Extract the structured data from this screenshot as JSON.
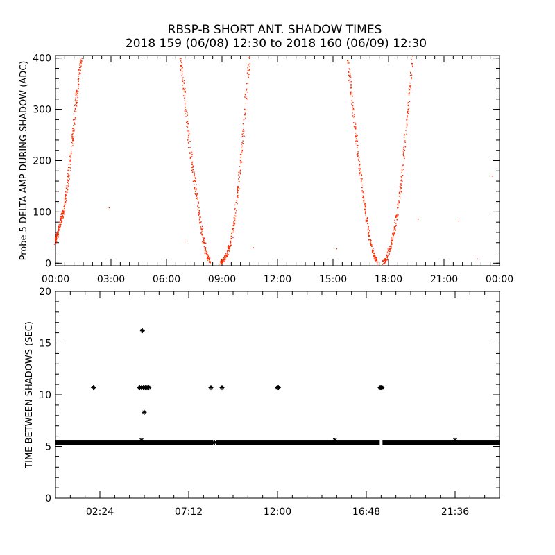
{
  "title": {
    "line1": "RBSP-B SHORT ANT. SHADOW TIMES",
    "line2": "2018 159 (06/08) 12:30 to 2018 160 (06/09) 12:30"
  },
  "colors": {
    "top_points": "#ff2a00",
    "bottom_points": "#000000",
    "axes": "#000000"
  },
  "chart_data": [
    {
      "type": "scatter",
      "name": "top-panel",
      "ylabel": "Probe 5 DELTA AMP DURING SHADOW (ADC)",
      "x_unit": "hours",
      "xlim": [
        0,
        24
      ],
      "ylim": [
        -5,
        405
      ],
      "x_ticks": [
        0,
        3,
        6,
        9,
        12,
        15,
        18,
        21,
        24
      ],
      "x_tick_labels": [
        "00:00",
        "03:00",
        "06:00",
        "09:00",
        "12:00",
        "15:00",
        "18:00",
        "21:00",
        "00:00"
      ],
      "y_ticks": [
        0,
        100,
        200,
        300,
        400
      ],
      "y_tick_labels": [
        "0",
        "100",
        "200",
        "300",
        "400"
      ],
      "marker": "dot",
      "grid": false,
      "segments": [
        {
          "x": [
            0.0,
            0.1,
            0.2,
            0.35,
            0.5,
            0.65,
            0.8,
            0.95,
            1.1,
            1.25,
            1.4
          ],
          "y": [
            40,
            55,
            70,
            90,
            115,
            150,
            200,
            250,
            310,
            360,
            400
          ]
        },
        {
          "x": [
            6.75,
            6.95,
            7.15,
            7.35,
            7.55,
            7.75,
            7.95,
            8.15,
            8.35
          ],
          "y": [
            400,
            340,
            260,
            200,
            150,
            100,
            55,
            20,
            0
          ]
        },
        {
          "x": [
            8.9,
            9.1,
            9.3,
            9.5,
            9.7,
            9.9,
            10.1,
            10.3,
            10.5
          ],
          "y": [
            0,
            5,
            20,
            45,
            90,
            150,
            230,
            320,
            400
          ]
        },
        {
          "x": [
            15.8,
            16.0,
            16.2,
            16.4,
            16.6,
            16.8,
            17.0,
            17.2,
            17.4
          ],
          "y": [
            400,
            330,
            260,
            200,
            140,
            90,
            45,
            15,
            0
          ]
        },
        {
          "x": [
            17.7,
            17.9,
            18.1,
            18.3,
            18.5,
            18.7,
            18.9,
            19.1,
            19.3
          ],
          "y": [
            0,
            10,
            30,
            60,
            100,
            160,
            240,
            320,
            400
          ]
        }
      ],
      "scattered_points": [
        {
          "x": 2.9,
          "y": 108
        },
        {
          "x": 7.0,
          "y": 43
        },
        {
          "x": 10.7,
          "y": 30
        },
        {
          "x": 15.2,
          "y": 28
        },
        {
          "x": 19.6,
          "y": 85
        },
        {
          "x": 21.8,
          "y": 82
        },
        {
          "x": 22.8,
          "y": 8
        },
        {
          "x": 23.6,
          "y": 170
        }
      ]
    },
    {
      "type": "scatter",
      "name": "bottom-panel",
      "ylabel": "TIME BETWEEN SHADOWS (SEC)",
      "x_unit": "hours",
      "xlim": [
        0,
        24
      ],
      "ylim": [
        0,
        20
      ],
      "x_ticks": [
        2.4,
        7.2,
        12.0,
        16.8,
        21.6
      ],
      "x_tick_labels": [
        "02:24",
        "07:12",
        "12:00",
        "16:48",
        "21:36"
      ],
      "y_ticks": [
        0,
        5,
        10,
        15,
        20
      ],
      "y_tick_labels": [
        "0",
        "5",
        "10",
        "15",
        "20"
      ],
      "marker": "asterisk",
      "grid": false,
      "baseline": {
        "y": 5.4,
        "x_start": 0,
        "x_end": 24,
        "gaps": [
          8.6,
          17.6
        ]
      },
      "points": [
        {
          "x": 2.05,
          "y": 10.7
        },
        {
          "x": 4.55,
          "y": 10.7
        },
        {
          "x": 4.65,
          "y": 10.7
        },
        {
          "x": 4.75,
          "y": 10.7
        },
        {
          "x": 4.85,
          "y": 10.7
        },
        {
          "x": 4.95,
          "y": 10.7
        },
        {
          "x": 5.05,
          "y": 10.7
        },
        {
          "x": 4.7,
          "y": 16.2
        },
        {
          "x": 4.8,
          "y": 8.3
        },
        {
          "x": 8.4,
          "y": 10.7
        },
        {
          "x": 9.0,
          "y": 10.7
        },
        {
          "x": 12.0,
          "y": 10.7
        },
        {
          "x": 12.05,
          "y": 10.7
        },
        {
          "x": 17.55,
          "y": 10.7
        },
        {
          "x": 17.6,
          "y": 10.7
        },
        {
          "x": 17.65,
          "y": 10.7
        },
        {
          "x": 4.65,
          "y": 5.6
        },
        {
          "x": 8.6,
          "y": 5.4
        },
        {
          "x": 15.1,
          "y": 5.6
        },
        {
          "x": 21.6,
          "y": 5.6
        }
      ]
    }
  ]
}
